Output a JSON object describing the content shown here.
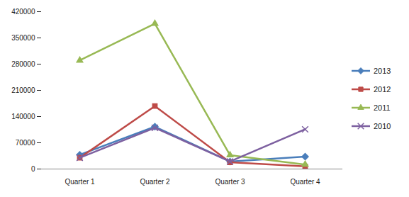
{
  "chart_data": {
    "type": "line",
    "categories": [
      "Quarter 1",
      "Quarter 2",
      "Quarter 3",
      "Quarter 4"
    ],
    "series": [
      {
        "name": "2013",
        "color": "#4a7ebb",
        "marker": "diamond",
        "values": [
          38000,
          113000,
          20000,
          33000
        ]
      },
      {
        "name": "2012",
        "color": "#be4b48",
        "marker": "square",
        "values": [
          30000,
          168000,
          18000,
          7000
        ]
      },
      {
        "name": "2011",
        "color": "#98b954",
        "marker": "triangle",
        "values": [
          290000,
          388000,
          37000,
          12000
        ]
      },
      {
        "name": "2010",
        "color": "#7d60a0",
        "marker": "x",
        "values": [
          30000,
          110000,
          20000,
          106000
        ]
      }
    ],
    "ylim": [
      0,
      420000
    ],
    "yticks": [
      0,
      70000,
      140000,
      210000,
      280000,
      350000,
      420000
    ],
    "grid": false,
    "legend": "right"
  }
}
